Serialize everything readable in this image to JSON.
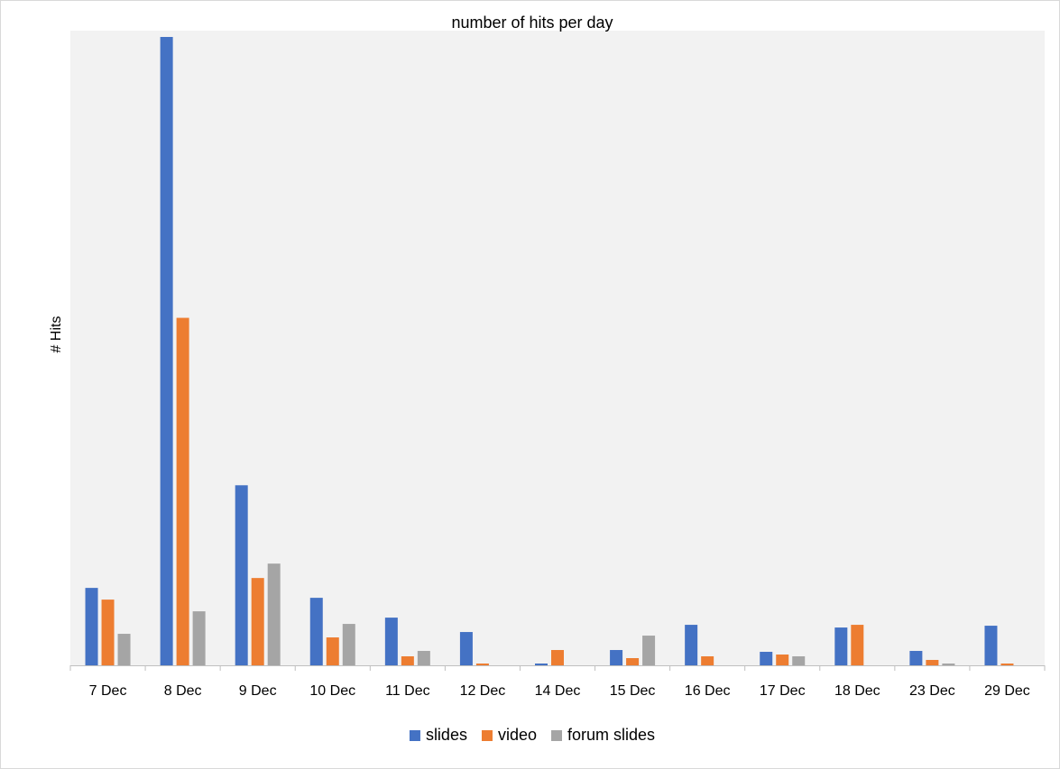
{
  "chart_data": {
    "type": "bar",
    "title": "number of hits per day",
    "xlabel": "",
    "ylabel": "# Hits",
    "categories": [
      "7 Dec",
      "8 Dec",
      "9 Dec",
      "10 Dec",
      "11 Dec",
      "12 Dec",
      "14 Dec",
      "15 Dec",
      "16 Dec",
      "17 Dec",
      "18 Dec",
      "23 Dec",
      "29 Dec"
    ],
    "series": [
      {
        "name": "slides",
        "color": "#4472C4",
        "values": [
          86,
          698,
          200,
          75,
          53,
          37,
          2,
          17,
          45,
          15,
          42,
          16,
          44
        ]
      },
      {
        "name": "video",
        "color": "#ED7D31",
        "values": [
          73,
          386,
          97,
          31,
          10,
          2,
          17,
          8,
          10,
          12,
          45,
          6,
          2
        ]
      },
      {
        "name": "forum slides",
        "color": "#A5A5A5",
        "values": [
          35,
          60,
          113,
          46,
          16,
          0,
          0,
          33,
          0,
          10,
          0,
          2,
          0
        ]
      }
    ],
    "ylim": [
      0,
      705
    ],
    "y_axis_visible": false,
    "grid": false,
    "plot_background": "#F2F2F2",
    "legend_position": "bottom"
  }
}
